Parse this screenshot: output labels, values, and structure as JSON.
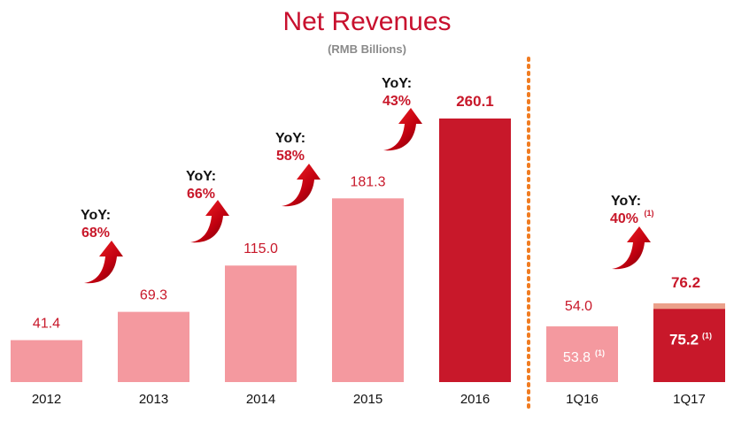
{
  "chart_data": {
    "type": "bar",
    "title": "Net Revenues",
    "subtitle": "(RMB Billions)",
    "xlabel": "",
    "ylabel": "",
    "ylim": [
      0,
      270
    ],
    "grid": false,
    "annual": {
      "categories": [
        "2012",
        "2013",
        "2014",
        "2015",
        "2016"
      ],
      "values": [
        41.4,
        69.3,
        115.0,
        181.3,
        260.1
      ],
      "value_labels": [
        "41.4",
        "69.3",
        "115.0",
        "181.3",
        "260.1"
      ],
      "highlight_index": 4,
      "yoy": [
        {
          "after": "2012",
          "label": "YoY:",
          "value": "68%",
          "note": ""
        },
        {
          "after": "2013",
          "label": "YoY:",
          "value": "66%",
          "note": ""
        },
        {
          "after": "2014",
          "label": "YoY:",
          "value": "58%",
          "note": ""
        },
        {
          "after": "2015",
          "label": "YoY:",
          "value": "43%",
          "note": ""
        }
      ]
    },
    "quarterly": {
      "categories": [
        "1Q16",
        "1Q17"
      ],
      "totals": [
        54.0,
        76.2
      ],
      "total_labels": [
        "54.0",
        "76.2"
      ],
      "adjusted": [
        53.8,
        75.2
      ],
      "adjusted_labels": [
        "53.8",
        "75.2"
      ],
      "note_mark": "(1)",
      "yoy": {
        "label": "YoY:",
        "value": "40%",
        "note": "(1)"
      }
    },
    "colors": {
      "light": "#f4999f",
      "dark": "#c8182a",
      "top_light": "#f5c4b0",
      "top_dark": "#eba08a",
      "label": "#c8182a",
      "divider": "#f07c22"
    }
  }
}
